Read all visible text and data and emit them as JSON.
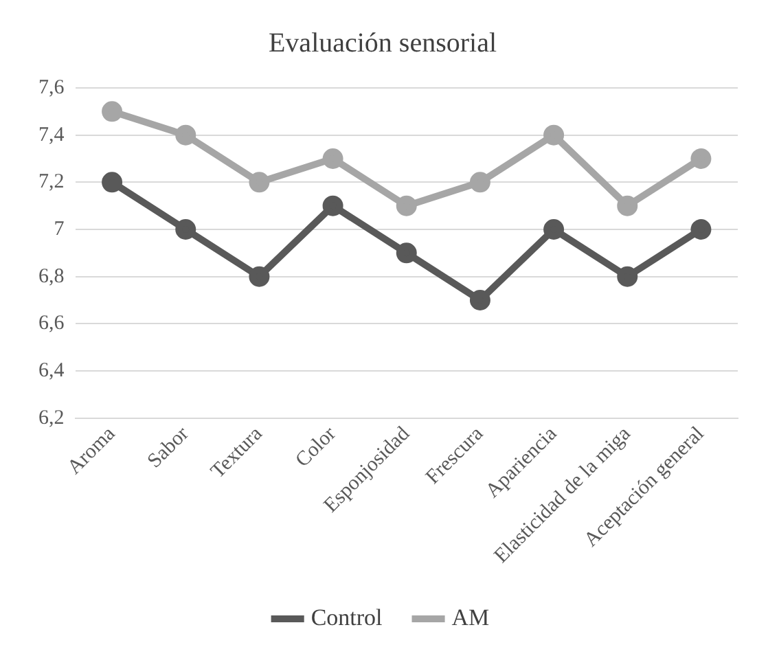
{
  "chart_data": {
    "type": "line",
    "title": "Evaluación sensorial",
    "categories": [
      "Aroma",
      "Sabor",
      "Textura",
      "Color",
      "Esponjosidad",
      "Frescura",
      "Apariencia",
      "Elasticidad de la miga",
      "Aceptación general"
    ],
    "series": [
      {
        "name": "Control",
        "color": "#595959",
        "values": [
          7.2,
          7.0,
          6.8,
          7.1,
          6.9,
          6.7,
          7.0,
          6.8,
          7.0
        ]
      },
      {
        "name": "AM",
        "color": "#a6a6a6",
        "values": [
          7.5,
          7.4,
          7.2,
          7.3,
          7.1,
          7.2,
          7.4,
          7.1,
          7.3
        ]
      }
    ],
    "ylim": [
      6.2,
      7.6
    ],
    "yticks": [
      {
        "value": 6.2,
        "label": "6,2"
      },
      {
        "value": 6.4,
        "label": "6,4"
      },
      {
        "value": 6.6,
        "label": "6,6"
      },
      {
        "value": 6.8,
        "label": "6,8"
      },
      7,
      {
        "value": 7.2,
        "label": "7,2"
      },
      {
        "value": 7.4,
        "label": "7,4"
      },
      {
        "value": 7.6,
        "label": "7,6"
      }
    ],
    "grid": "y",
    "legend": "bottom",
    "marker": "circle",
    "line_style": "solid"
  }
}
